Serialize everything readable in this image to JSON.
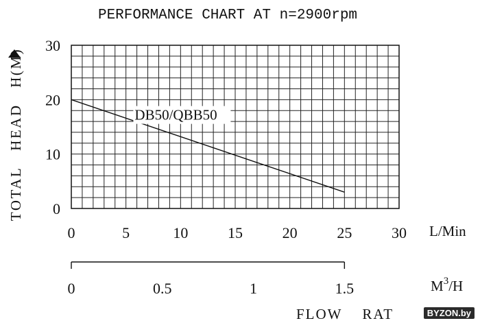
{
  "chart_data": {
    "type": "line",
    "title": "PERFORMANCE CHART AT n=2900rpm",
    "ylabel": "TOTAL HEAD H(M)",
    "xlabel": "FLOW RAT",
    "x_unit": "L/Min",
    "x2_unit_base": "M",
    "x2_unit_exp": "3",
    "x2_unit_tail": "/H",
    "ylim": [
      0,
      30
    ],
    "xlim": [
      0,
      30
    ],
    "grid": true,
    "y_ticks": [
      "0",
      "10",
      "20",
      "30"
    ],
    "y_tick_values": [
      0,
      10,
      20,
      30
    ],
    "x_ticks": [
      "0",
      "5",
      "10",
      "15",
      "20",
      "25",
      "30"
    ],
    "x_tick_values": [
      0,
      5,
      10,
      15,
      20,
      25,
      30
    ],
    "x2_ticks": [
      "0",
      "0.5",
      "1",
      "1.5"
    ],
    "x2_tick_values": [
      0,
      0.5,
      1,
      1.5
    ],
    "series": [
      {
        "name": "DB50/QBB50",
        "x": [
          0,
          25
        ],
        "y": [
          20,
          3
        ]
      }
    ]
  },
  "watermark": {
    "text": "BYZON.by"
  },
  "colors": {
    "ink": "#111111",
    "grid": "#222222"
  }
}
